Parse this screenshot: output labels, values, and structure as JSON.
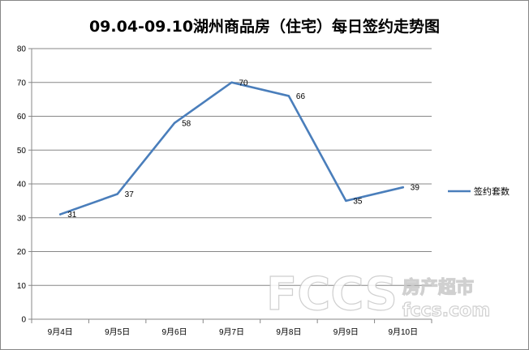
{
  "chart_data": {
    "type": "line",
    "title": "09.04-09.10湖州商品房（住宅）每日签约走势图",
    "categories": [
      "9月4日",
      "9月5日",
      "9月6日",
      "9月7日",
      "9月8日",
      "9月9日",
      "9月10日"
    ],
    "series": [
      {
        "name": "签约套数",
        "values": [
          31,
          37,
          58,
          70,
          66,
          35,
          39
        ],
        "color": "#4a7ebb"
      }
    ],
    "ylim": [
      0,
      80
    ],
    "yticks": [
      0,
      10,
      20,
      30,
      40,
      50,
      60,
      70,
      80
    ],
    "grid": true,
    "legend": "right",
    "data_labels": true
  },
  "watermark": {
    "logo": "FCCS",
    "brand": "房产超市",
    "url": "fccs.com"
  }
}
